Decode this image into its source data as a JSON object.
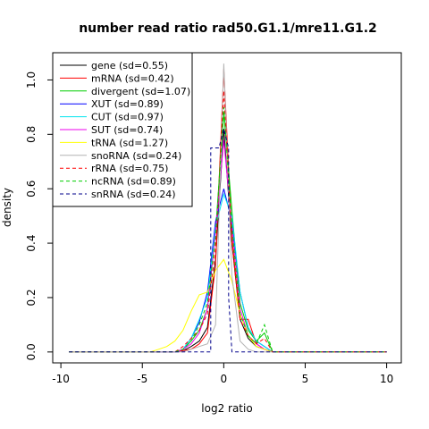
{
  "chart_data": {
    "type": "line",
    "title": "number read ratio rad50.G1.1/mre11.G1.2",
    "xlabel": "log2 ratio",
    "ylabel": "density",
    "xlim": [
      -10.5,
      10.9
    ],
    "ylim": [
      -0.04,
      1.1
    ],
    "xticks": [
      -10,
      -5,
      0,
      5,
      10
    ],
    "xtick_labels": [
      "-10",
      "-5",
      "0",
      "5",
      "10"
    ],
    "yticks": [
      0.0,
      0.2,
      0.4,
      0.6,
      0.8,
      1.0
    ],
    "ytick_labels": [
      "0.0",
      "0.2",
      "0.4",
      "0.6",
      "0.8",
      "1.0"
    ],
    "grid": false,
    "legend_position": "top-left",
    "series": [
      {
        "name": "gene (sd=0.55)",
        "color": "#000000",
        "dash": "solid",
        "x": [
          -9.5,
          -3.0,
          -2.5,
          -2.0,
          -1.5,
          -1.0,
          -0.5,
          0.0,
          0.5,
          1.0,
          1.5,
          2.0,
          2.5,
          3.0,
          10.0
        ],
        "y": [
          0.0,
          0.0,
          0.005,
          0.02,
          0.04,
          0.09,
          0.34,
          0.82,
          0.4,
          0.12,
          0.05,
          0.02,
          0.01,
          0.0,
          0.0
        ]
      },
      {
        "name": "mRNA (sd=0.42)",
        "color": "#ff0000",
        "dash": "solid",
        "x": [
          -9.5,
          -3.0,
          -2.5,
          -2.0,
          -1.5,
          -1.0,
          -0.5,
          0.0,
          0.5,
          1.0,
          1.5,
          2.0,
          2.5,
          3.0,
          10.0
        ],
        "y": [
          0.0,
          0.0,
          0.005,
          0.01,
          0.03,
          0.07,
          0.32,
          1.04,
          0.42,
          0.12,
          0.12,
          0.03,
          0.01,
          0.0,
          0.0
        ]
      },
      {
        "name": "divergent (sd=1.07)",
        "color": "#00cd00",
        "dash": "solid",
        "x": [
          -9.5,
          -3.0,
          -2.5,
          -2.0,
          -1.5,
          -1.0,
          -0.5,
          0.0,
          0.5,
          1.0,
          1.5,
          2.0,
          2.5,
          3.0,
          10.0
        ],
        "y": [
          0.0,
          0.0,
          0.01,
          0.04,
          0.08,
          0.16,
          0.44,
          0.88,
          0.52,
          0.18,
          0.08,
          0.04,
          0.07,
          0.0,
          0.0
        ]
      },
      {
        "name": "XUT (sd=0.89)",
        "color": "#0000ff",
        "dash": "solid",
        "x": [
          -9.5,
          -3.0,
          -2.5,
          -2.0,
          -1.5,
          -1.0,
          -0.5,
          0.0,
          0.5,
          1.0,
          1.5,
          2.0,
          2.5,
          3.0,
          10.0
        ],
        "y": [
          0.0,
          0.0,
          0.01,
          0.05,
          0.11,
          0.22,
          0.48,
          0.6,
          0.48,
          0.22,
          0.09,
          0.04,
          0.02,
          0.0,
          0.0
        ]
      },
      {
        "name": "CUT (sd=0.97)",
        "color": "#00e5ee",
        "dash": "solid",
        "x": [
          -9.5,
          -3.0,
          -2.5,
          -2.0,
          -1.5,
          -1.0,
          -0.5,
          0.0,
          0.5,
          1.0,
          1.5,
          2.0,
          2.5,
          3.0,
          10.0
        ],
        "y": [
          0.0,
          0.0,
          0.01,
          0.05,
          0.12,
          0.2,
          0.46,
          0.58,
          0.5,
          0.22,
          0.09,
          0.04,
          0.02,
          0.0,
          0.0
        ]
      },
      {
        "name": "SUT (sd=0.74)",
        "color": "#ee00ee",
        "dash": "solid",
        "x": [
          -9.5,
          -3.0,
          -2.5,
          -2.0,
          -1.5,
          -1.0,
          -0.5,
          0.0,
          0.5,
          1.0,
          1.5,
          2.0,
          2.5,
          3.0,
          10.0
        ],
        "y": [
          0.0,
          0.0,
          0.01,
          0.03,
          0.07,
          0.16,
          0.44,
          0.78,
          0.46,
          0.16,
          0.06,
          0.03,
          0.01,
          0.0,
          0.0
        ]
      },
      {
        "name": "tRNA (sd=1.27)",
        "color": "#ffff00",
        "dash": "solid",
        "x": [
          -9.5,
          -4.5,
          -4.0,
          -3.5,
          -3.0,
          -2.5,
          -2.0,
          -1.5,
          -1.0,
          -0.5,
          0.0,
          0.5,
          1.0,
          1.5,
          2.0,
          2.5,
          3.0,
          10.0
        ],
        "y": [
          0.0,
          0.0,
          0.01,
          0.02,
          0.04,
          0.08,
          0.15,
          0.21,
          0.22,
          0.3,
          0.34,
          0.26,
          0.14,
          0.06,
          0.02,
          0.01,
          0.0,
          0.0
        ]
      },
      {
        "name": "snoRNA (sd=0.24)",
        "color": "#b3b3b3",
        "dash": "solid",
        "x": [
          -9.5,
          -3.0,
          -2.5,
          -2.0,
          -1.5,
          -1.0,
          -0.5,
          0.0,
          0.5,
          1.0,
          1.5,
          2.0,
          2.5,
          3.0,
          10.0
        ],
        "y": [
          0.0,
          0.0,
          0.0,
          0.01,
          0.02,
          0.03,
          0.1,
          1.06,
          0.28,
          0.04,
          0.01,
          0.0,
          0.0,
          0.0,
          0.0
        ]
      },
      {
        "name": "rRNA (sd=0.75)",
        "color": "#ff0000",
        "dash": "dashed",
        "x": [
          -9.5,
          -3.0,
          -2.5,
          -2.0,
          -1.5,
          -1.0,
          -0.5,
          0.0,
          0.5,
          1.0,
          1.5,
          2.0,
          2.5,
          3.0,
          10.0
        ],
        "y": [
          0.0,
          0.0,
          0.02,
          0.05,
          0.08,
          0.14,
          0.38,
          0.96,
          0.4,
          0.12,
          0.06,
          0.03,
          0.05,
          0.0,
          0.0
        ]
      },
      {
        "name": "ncRNA (sd=0.89)",
        "color": "#00cd00",
        "dash": "dashed",
        "x": [
          -9.5,
          -3.0,
          -2.5,
          -2.0,
          -1.5,
          -1.0,
          -0.5,
          0.0,
          0.5,
          1.0,
          1.5,
          2.0,
          2.5,
          3.0,
          10.0
        ],
        "y": [
          0.0,
          0.0,
          0.01,
          0.04,
          0.1,
          0.18,
          0.42,
          0.9,
          0.46,
          0.14,
          0.06,
          0.03,
          0.1,
          0.0,
          0.0
        ]
      },
      {
        "name": "snRNA (sd=0.24)",
        "color": "#00008b",
        "dash": "dashed",
        "x": [
          -9.5,
          -1.2,
          -0.8,
          -0.8,
          -0.3,
          0.0,
          0.3,
          0.3,
          0.5,
          10.0
        ],
        "y": [
          0.0,
          0.0,
          0.0,
          0.75,
          0.75,
          0.82,
          0.75,
          0.2,
          0.0,
          0.0
        ]
      }
    ]
  }
}
